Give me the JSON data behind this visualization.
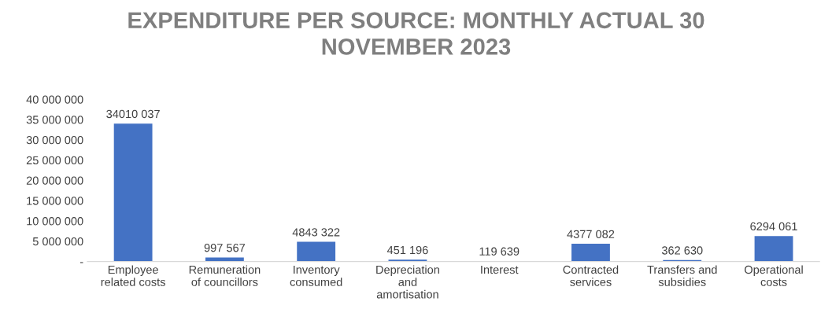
{
  "chart_data": {
    "type": "bar",
    "title": "EXPENDITURE PER SOURCE: MONTHLY ACTUAL 30 NOVEMBER 2023",
    "categories": [
      "Employee related costs",
      "Remuneration of councillors",
      "Inventory consumed",
      "Depreciation and amortisation",
      "Interest",
      "Contracted services",
      "Transfers and subsidies",
      "Operational costs"
    ],
    "values": [
      34010037,
      997567,
      4843322,
      451196,
      119639,
      4377082,
      362630,
      6294061
    ],
    "value_labels": [
      "34010 037",
      "997 567",
      "4843 322",
      "451 196",
      "119 639",
      "4377 082",
      "362 630",
      "6294 061"
    ],
    "color": "#4472c4",
    "ylim": [
      0,
      40000000
    ],
    "yticks": [
      {
        "value": 0,
        "label": "-"
      },
      {
        "value": 5000000,
        "label": "5 000 000"
      },
      {
        "value": 10000000,
        "label": "10 000 000"
      },
      {
        "value": 15000000,
        "label": "15 000 000"
      },
      {
        "value": 20000000,
        "label": "20 000 000"
      },
      {
        "value": 25000000,
        "label": "25 000 000"
      },
      {
        "value": 30000000,
        "label": "30 000 000"
      },
      {
        "value": 35000000,
        "label": "35 000 000"
      },
      {
        "value": 40000000,
        "label": "40 000 000"
      }
    ],
    "grid": false,
    "legend": false
  }
}
